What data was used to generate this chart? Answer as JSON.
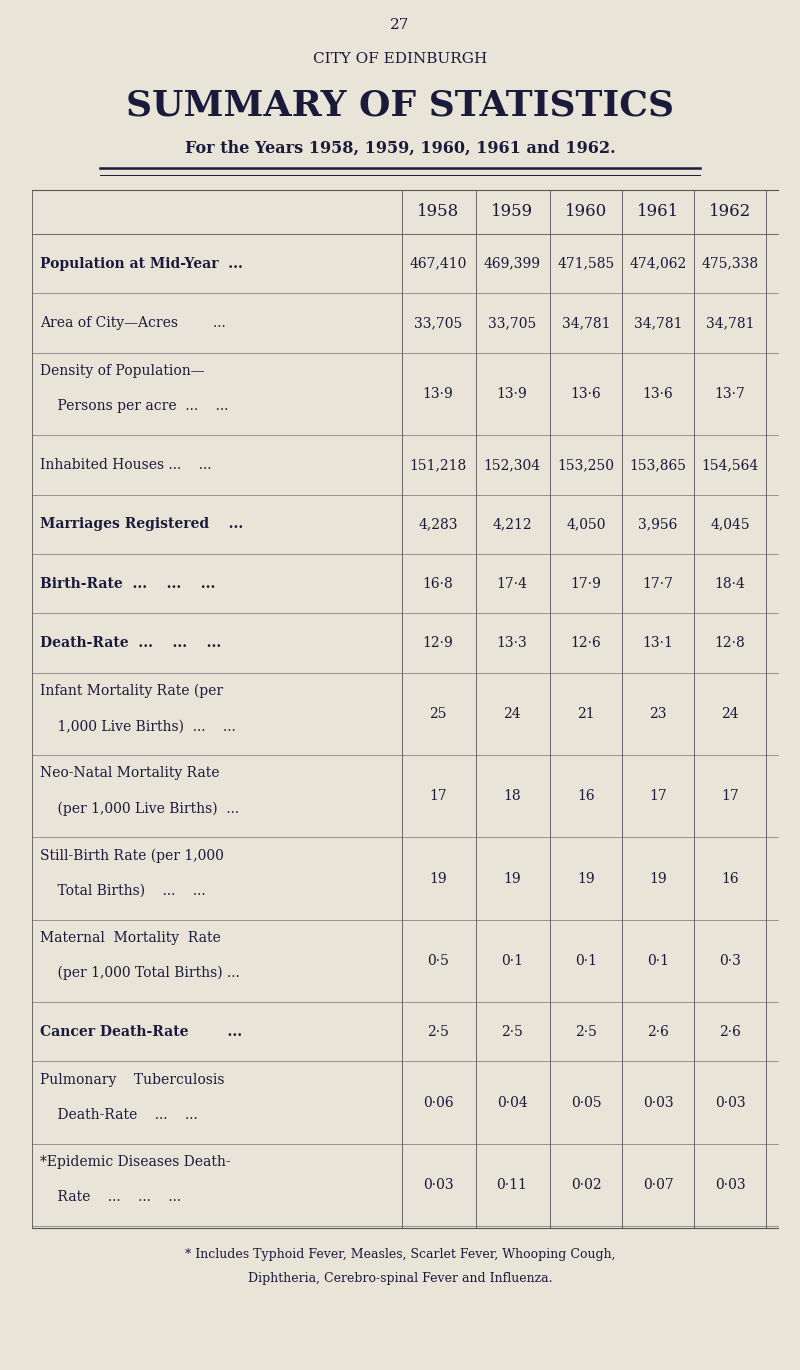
{
  "page_number": "27",
  "title_line1": "CITY OF EDINBURGH",
  "title_line2": "SUMMARY OF STATISTICS",
  "title_line3": "For the Years 1958, 1959, 1960, 1961 and 1962.",
  "years": [
    "1958",
    "1959",
    "1960",
    "1961",
    "1962"
  ],
  "rows": [
    {
      "label_lines": [
        "Population at Mid-Year  ..."
      ],
      "values": [
        "467,410",
        "469,399",
        "471,585",
        "474,062",
        "475,338"
      ],
      "bold": true
    },
    {
      "label_lines": [
        "Area of City—Acres        ..."
      ],
      "values": [
        "33,705",
        "33,705",
        "34,781",
        "34,781",
        "34,781"
      ],
      "bold": false
    },
    {
      "label_lines": [
        "Density of Population—",
        "    Persons per acre  ...    ..."
      ],
      "values": [
        "13·9",
        "13·9",
        "13·6",
        "13·6",
        "13·7"
      ],
      "bold": false
    },
    {
      "label_lines": [
        "Inhabited Houses ...    ..."
      ],
      "values": [
        "151,218",
        "152,304",
        "153,250",
        "153,865",
        "154,564"
      ],
      "bold": false
    },
    {
      "label_lines": [
        "Marriages Registered    ..."
      ],
      "values": [
        "4,283",
        "4,212",
        "4,050",
        "3,956",
        "4,045"
      ],
      "bold": true
    },
    {
      "label_lines": [
        "Birth-Rate  ...    ...    ..."
      ],
      "values": [
        "16·8",
        "17·4",
        "17·9",
        "17·7",
        "18·4"
      ],
      "bold": true
    },
    {
      "label_lines": [
        "Death-Rate  ...    ...    ..."
      ],
      "values": [
        "12·9",
        "13·3",
        "12·6",
        "13·1",
        "12·8"
      ],
      "bold": true
    },
    {
      "label_lines": [
        "Infant Mortality Rate (per",
        "    1,000 Live Births)  ...    ..."
      ],
      "values": [
        "25",
        "24",
        "21",
        "23",
        "24"
      ],
      "bold": false
    },
    {
      "label_lines": [
        "Neo-Natal Mortality Rate",
        "    (per 1,000 Live Births)  ..."
      ],
      "values": [
        "17",
        "18",
        "16",
        "17",
        "17"
      ],
      "bold": false
    },
    {
      "label_lines": [
        "Still-Birth Rate (per 1,000",
        "    Total Births)    ...    ..."
      ],
      "values": [
        "19",
        "19",
        "19",
        "19",
        "16"
      ],
      "bold": false
    },
    {
      "label_lines": [
        "Maternal  Mortality  Rate",
        "    (per 1,000 Total Births) ..."
      ],
      "values": [
        "0·5",
        "0·1",
        "0·1",
        "0·1",
        "0·3"
      ],
      "bold": false
    },
    {
      "label_lines": [
        "Cancer Death-Rate        ..."
      ],
      "values": [
        "2·5",
        "2·5",
        "2·5",
        "2·6",
        "2·6"
      ],
      "bold": true
    },
    {
      "label_lines": [
        "Pulmonary    Tuberculosis",
        "    Death-Rate    ...    ..."
      ],
      "values": [
        "0·06",
        "0·04",
        "0·05",
        "0·03",
        "0·03"
      ],
      "bold": false
    },
    {
      "label_lines": [
        "*Epidemic Diseases Death-",
        "    Rate    ...    ...    ..."
      ],
      "values": [
        "0·03",
        "0·11",
        "0·02",
        "0·07",
        "0·03"
      ],
      "bold": false
    }
  ],
  "footnote_star": "* Includes Typhoid Fever, Measles, Scarlet Fever, Whooping Cough,",
  "footnote_line2": "Diphtheria, Cerebro-spinal Fever and Influenza.",
  "bg_color": "#e8e4d8",
  "text_color": "#1a1a3a",
  "table_line_color": "#555555"
}
